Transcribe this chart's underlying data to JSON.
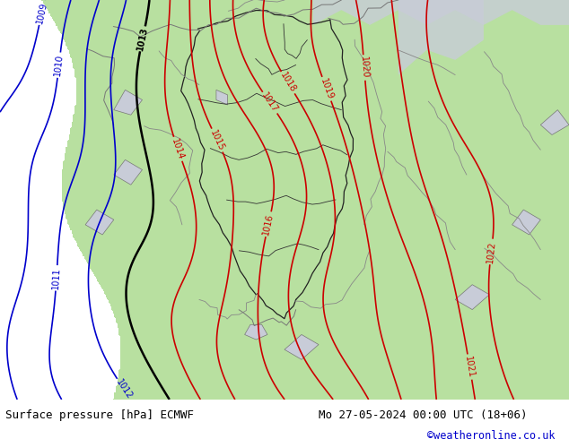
{
  "title_left": "Surface pressure [hPa] ECMWF",
  "title_right": "Mo 27-05-2024 00:00 UTC (18+06)",
  "credit": "©weatheronline.co.uk",
  "bg_color_ocean": "#c8ccd8",
  "bg_color_land": "#b8e0a0",
  "border_color": "#555555",
  "coast_color": "#888888",
  "contour_color_low": "#0000cc",
  "contour_color_mid": "#000000",
  "contour_color_high": "#cc0000",
  "figsize": [
    6.34,
    4.9
  ],
  "dpi": 100,
  "bottom_bar_color": "#90ee90",
  "bottom_text_color": "#000000",
  "credit_color": "#0000cc",
  "isobar_values": [
    1009,
    1010,
    1011,
    1012,
    1013,
    1014,
    1015,
    1016,
    1017,
    1018,
    1019,
    1020,
    1021,
    1022
  ]
}
